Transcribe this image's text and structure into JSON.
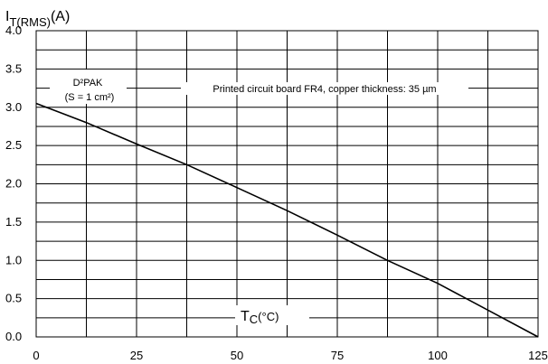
{
  "chart_data": {
    "type": "line",
    "ylabel": {
      "main": "I",
      "sub": "T(RMS)",
      "unit": "(A)"
    },
    "xlabel": {
      "main": "T",
      "sub": "C",
      "unit": "(°C)"
    },
    "xlim": [
      0,
      125
    ],
    "ylim": [
      0,
      4
    ],
    "x_ticks": [
      0,
      25,
      50,
      75,
      100,
      125
    ],
    "y_ticks": [
      0.0,
      0.5,
      1.0,
      1.5,
      2.0,
      2.5,
      3.0,
      3.5,
      4.0
    ],
    "x_tick_labels": [
      "0",
      "25",
      "50",
      "75",
      "100",
      "125"
    ],
    "y_tick_labels": [
      "0.0",
      "0.5",
      "1.0",
      "1.5",
      "2.0",
      "2.5",
      "3.0",
      "3.5",
      "4.0"
    ],
    "grid": true,
    "series": [
      {
        "x": [
          0,
          12.5,
          25,
          37.5,
          50,
          62.5,
          75,
          87.5,
          100,
          112.5,
          125
        ],
        "y": [
          3.05,
          2.8,
          2.52,
          2.25,
          1.95,
          1.65,
          1.33,
          1.0,
          0.7,
          0.35,
          0.0
        ]
      }
    ],
    "annotations": [
      {
        "text": "D²PAK"
      },
      {
        "text": "(S = 1 cm²)"
      },
      {
        "text": "Printed circuit board FR4, copper thickness: 35 µm"
      }
    ]
  }
}
